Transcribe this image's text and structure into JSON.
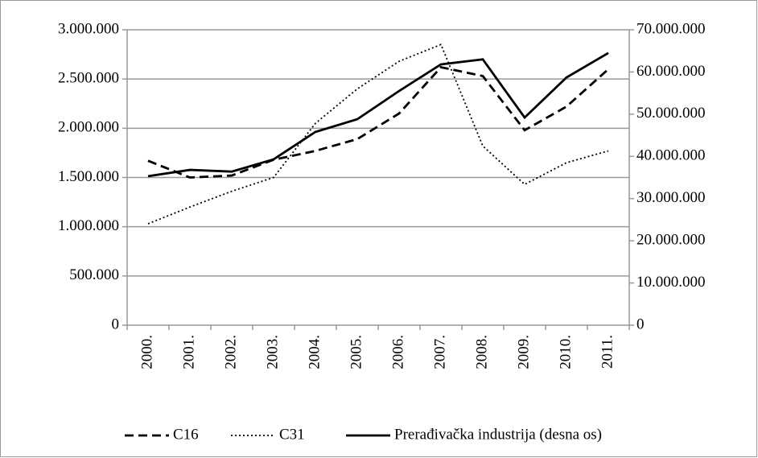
{
  "chart_data": {
    "type": "line",
    "categories": [
      "2000.",
      "2001.",
      "2002.",
      "2003.",
      "2004.",
      "2005.",
      "2006.",
      "2007.",
      "2008.",
      "2009.",
      "2010.",
      "2011."
    ],
    "series": [
      {
        "name": "C16",
        "color": "#000000",
        "dash": "dashed",
        "values": [
          1670000,
          1500000,
          1520000,
          1680000,
          1770000,
          1890000,
          2150000,
          2620000,
          2530000,
          1980000,
          2220000,
          2600000
        ]
      },
      {
        "name": "C31",
        "color": "#000000",
        "dash": "dotted",
        "values": [
          1030000,
          1200000,
          1360000,
          1500000,
          2050000,
          2400000,
          2680000,
          2850000,
          1820000,
          1430000,
          1650000,
          1770000
        ]
      },
      {
        "name": "Prerađivačka industrija (desna os)",
        "color": "#000000",
        "dash": "solid",
        "axis": "y2",
        "values": [
          35300000,
          36800000,
          36400000,
          39300000,
          45800000,
          48800000,
          55500000,
          61800000,
          63000000,
          49200000,
          58700000,
          64500000
        ]
      }
    ],
    "ylim": [
      0,
      3000000
    ],
    "yticks": [
      0,
      {
        "value": 500000,
        "label": "500.000"
      },
      {
        "value": 1000000,
        "label": "1.000.000"
      },
      {
        "value": 1500000,
        "label": "1.500.000"
      },
      {
        "value": 2000000,
        "label": "2.000.000"
      },
      {
        "value": 2500000,
        "label": "2.500.000"
      },
      {
        "value": 3000000,
        "label": "3.000.000"
      }
    ],
    "y2lim": [
      0,
      70000000
    ],
    "y2ticks": [
      0,
      {
        "value": 10000000,
        "label": "10.000.000"
      },
      {
        "value": 20000000,
        "label": "20.000.000"
      },
      {
        "value": 30000000,
        "label": "30.000.000"
      },
      {
        "value": 40000000,
        "label": "40.000.000"
      },
      {
        "value": 50000000,
        "label": "50.000.000"
      },
      {
        "value": 60000000,
        "label": "60.000.000"
      },
      {
        "value": 70000000,
        "label": "70.000.000"
      }
    ],
    "grid": true,
    "legend": "bottom"
  }
}
